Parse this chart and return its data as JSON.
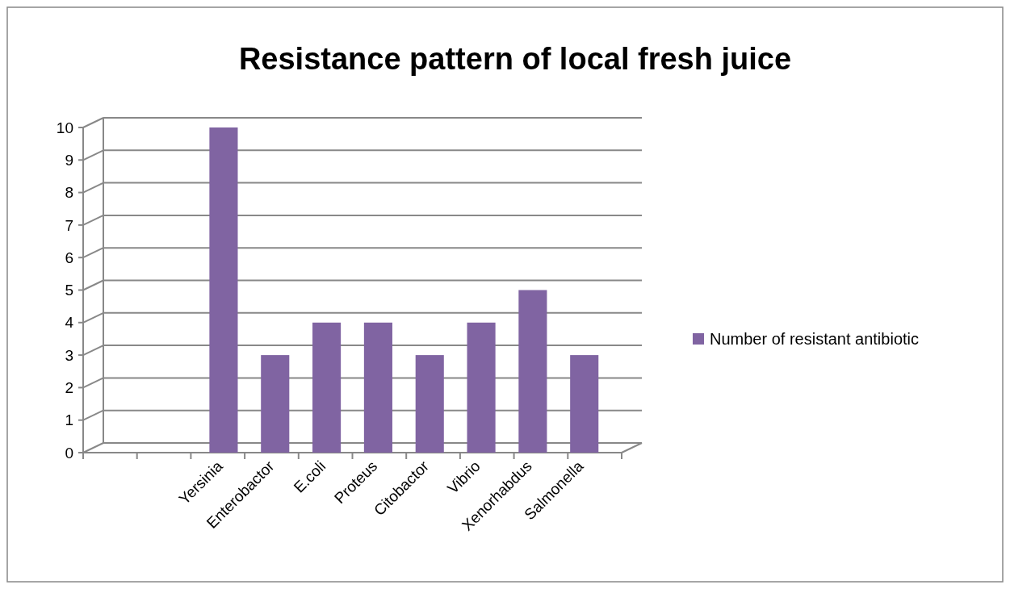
{
  "chart_data": {
    "type": "bar",
    "title": "Resistance pattern of local fresh juice",
    "categories": [
      null,
      null,
      "Yersinia",
      "Enterobactor",
      "E.coli",
      "Proteus",
      "Citobactor",
      "Vibrio",
      "Xenorhabdus",
      "Salmonella"
    ],
    "series": [
      {
        "name": "Number of resistant antibiotic",
        "color": "#8064a2",
        "values": [
          null,
          null,
          10,
          3,
          4,
          4,
          3,
          4,
          5,
          3
        ]
      }
    ],
    "ylim": [
      0,
      10
    ],
    "yticks": [
      0,
      1,
      2,
      3,
      4,
      5,
      6,
      7,
      8,
      9,
      10
    ],
    "grid": "y",
    "legend": "right"
  }
}
